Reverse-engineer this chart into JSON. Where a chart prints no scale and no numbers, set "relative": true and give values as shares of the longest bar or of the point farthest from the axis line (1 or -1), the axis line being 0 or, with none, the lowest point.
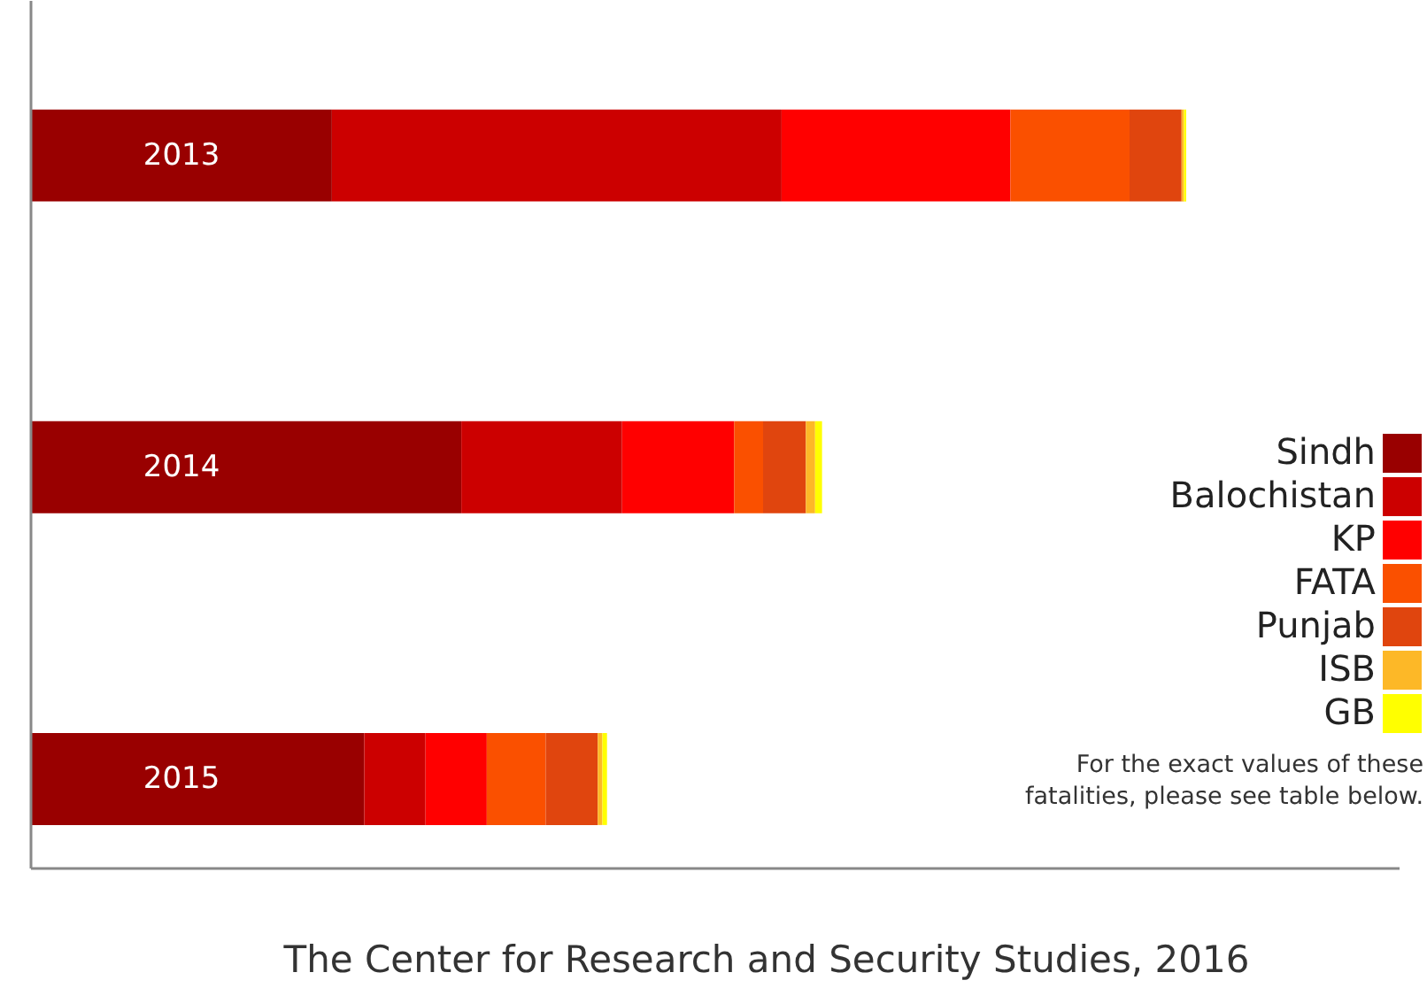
{
  "chart_data": {
    "type": "bar",
    "orientation": "horizontal",
    "stacked": true,
    "relative": true,
    "legend": "right",
    "categories": [
      "2013",
      "2014",
      "2015"
    ],
    "series": [
      {
        "name": "Sindh",
        "color": "#990000",
        "values": [
          0.261,
          0.373,
          0.289
        ]
      },
      {
        "name": "Balochistan",
        "color": "#cc0000",
        "values": [
          0.389,
          0.139,
          0.053
        ]
      },
      {
        "name": "KP",
        "color": "#ff0000",
        "values": [
          0.198,
          0.097,
          0.053
        ]
      },
      {
        "name": "FATA",
        "color": "#fa5000",
        "values": [
          0.103,
          0.025,
          0.051
        ]
      },
      {
        "name": "Punjab",
        "color": "#e0450e",
        "values": [
          0.045,
          0.037,
          0.045
        ]
      },
      {
        "name": "ISB",
        "color": "#fdb827",
        "values": [
          0.002,
          0.008,
          0.004
        ]
      },
      {
        "name": "GB",
        "color": "#ffff00",
        "values": [
          0.002,
          0.006,
          0.004
        ]
      }
    ],
    "annotations": [
      "For the exact values of these fatalities, please see table below.",
      "The Center for Research and Security Studies, 2016"
    ]
  }
}
